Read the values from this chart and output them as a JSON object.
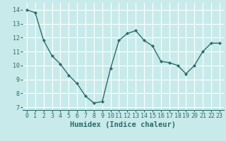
{
  "x": [
    0,
    1,
    2,
    3,
    4,
    5,
    6,
    7,
    8,
    9,
    10,
    11,
    12,
    13,
    14,
    15,
    16,
    17,
    18,
    19,
    20,
    21,
    22,
    23
  ],
  "y": [
    14.0,
    13.8,
    11.8,
    10.7,
    10.1,
    9.3,
    8.7,
    7.8,
    7.3,
    7.4,
    9.8,
    11.8,
    12.3,
    12.5,
    11.8,
    11.4,
    10.3,
    10.2,
    10.0,
    9.4,
    10.0,
    11.0,
    11.6,
    11.6
  ],
  "line_color": "#2e6b6b",
  "marker": "D",
  "marker_size": 2.0,
  "bg_color": "#c8eaea",
  "grid_color": "#ffffff",
  "xlabel": "Humidex (Indice chaleur)",
  "xlabel_fontsize": 7.5,
  "xlabel_fontweight": "bold",
  "xlabel_color": "#2e6b6b",
  "tick_color": "#2e6b6b",
  "ylim": [
    6.8,
    14.5
  ],
  "xlim": [
    -0.5,
    23.5
  ],
  "yticks": [
    7,
    8,
    9,
    10,
    11,
    12,
    13,
    14
  ],
  "xticks": [
    0,
    1,
    2,
    3,
    4,
    5,
    6,
    7,
    8,
    9,
    10,
    11,
    12,
    13,
    14,
    15,
    16,
    17,
    18,
    19,
    20,
    21,
    22,
    23
  ],
  "tick_fontsize": 6.0,
  "spine_color": "#2e6b6b"
}
